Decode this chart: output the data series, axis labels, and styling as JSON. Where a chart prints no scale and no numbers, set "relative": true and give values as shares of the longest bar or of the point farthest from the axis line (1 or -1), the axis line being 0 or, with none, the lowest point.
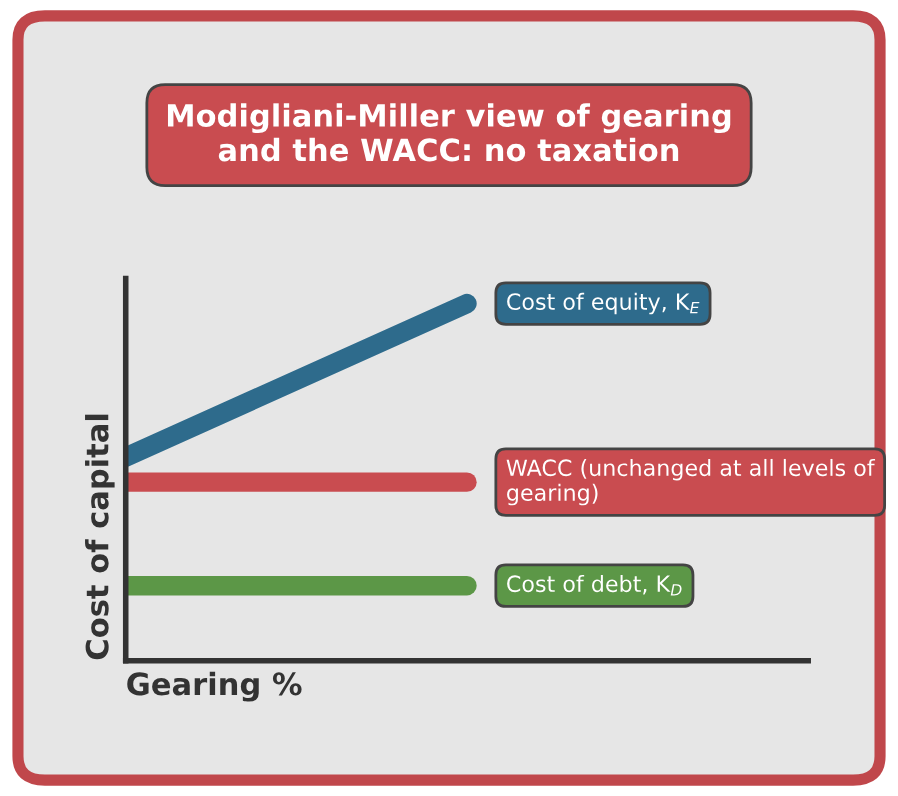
{
  "chart_data": {
    "type": "line",
    "relative": true,
    "title": "Modigliani-Miller view of gearing and the WACC: no taxation",
    "xlabel": "Gearing %",
    "ylabel": "Cost of capital",
    "categories": [
      null,
      null
    ],
    "marker": "none",
    "line_style": "solid",
    "legend": false,
    "series": [
      {
        "name": "Cost of equity, K$_{E}$",
        "color": "#2e6b8c",
        "values": [
          0.57,
          1
        ]
      },
      {
        "name": "WACC (unchanged at all levels of gearing)",
        "color": "#c94c50",
        "values": [
          0.5,
          0.5
        ]
      },
      {
        "name": "Cost of debt, K$_{D}$",
        "color": "#5c9747",
        "values": [
          0.21,
          0.21
        ]
      }
    ]
  }
}
